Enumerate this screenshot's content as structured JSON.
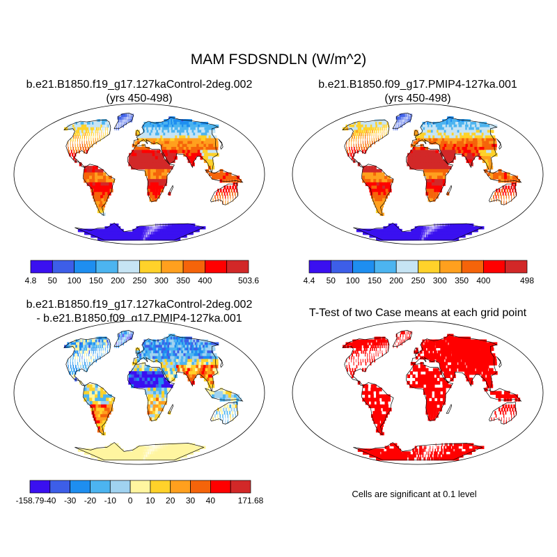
{
  "figure": {
    "title": "MAM FSDSNDLN (W/m^2)"
  },
  "panels": [
    {
      "id": "case1",
      "title_line1": "b.e21.B1850.f19_g17.127kaControl-2deg.002",
      "title_line2": "(yrs 450-498)"
    },
    {
      "id": "case2",
      "title_line1": "b.e21.B1850.f09_g17.PMIP4-127ka.001",
      "title_line2": "(yrs 450-498)"
    },
    {
      "id": "difference",
      "title_line1": "b.e21.B1850.f19_g17.127kaControl-2deg.002",
      "title_line2": "- b.e21.B1850.f09_g17.PMIP4-127ka.001"
    },
    {
      "id": "ttest",
      "title_line1": "T-Test of two Case means at each grid point",
      "note": "Cells are significant at 0.1 level"
    }
  ],
  "colorbars": {
    "case1": {
      "labels": [
        "4.8",
        "50",
        "100",
        "150",
        "200",
        "250",
        "300",
        "350",
        "400",
        "503.6"
      ],
      "colors": [
        "#3a10f0",
        "#3d5ee8",
        "#1e8ef0",
        "#4cb4f0",
        "#c6e4f4",
        "#ffd22a",
        "#ffa01e",
        "#f5640a",
        "#ff0000",
        "#d22828"
      ]
    },
    "case2": {
      "labels": [
        "4.4",
        "50",
        "100",
        "150",
        "200",
        "250",
        "300",
        "350",
        "400",
        "498"
      ],
      "colors": [
        "#3a10f0",
        "#3d5ee8",
        "#1e8ef0",
        "#4cb4f0",
        "#c6e4f4",
        "#ffd22a",
        "#ffa01e",
        "#f5640a",
        "#ff0000",
        "#d22828"
      ]
    },
    "difference": {
      "labels": [
        "-158.79",
        "-40",
        "-30",
        "-20",
        "-10",
        "0",
        "10",
        "20",
        "30",
        "40",
        "171.68"
      ],
      "colors": [
        "#3a10f0",
        "#3d5ee8",
        "#1e8ef0",
        "#4cb4f0",
        "#a0d2f0",
        "#fff5a0",
        "#ffd22a",
        "#ffa01e",
        "#f5640a",
        "#ff0000",
        "#d22828"
      ]
    }
  },
  "colors": {
    "significant": "#ff0000",
    "ocean": "#ffffff",
    "coast": "#000000"
  }
}
